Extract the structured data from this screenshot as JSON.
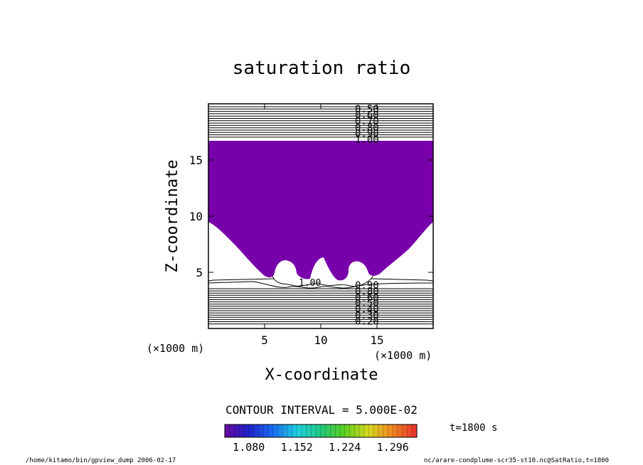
{
  "chart_data": {
    "type": "contour",
    "title": "saturation ratio",
    "xlabel": "X-coordinate",
    "ylabel": "Z-coordinate",
    "x_units": "(×1000 m)",
    "x_units_right": "(×1000 m)",
    "xlim": [
      0,
      20
    ],
    "ylim": [
      0,
      20
    ],
    "x_ticks": [
      5,
      10,
      15
    ],
    "y_ticks": [
      5,
      10,
      15
    ],
    "contour_labels_upper": [
      "0.50",
      "0.60",
      "0.70",
      "0.80",
      "0.90",
      "1.00"
    ],
    "contour_labels_lower": [
      "0.90",
      "0.80",
      "0.60",
      "0.50",
      "0.40",
      "0.30",
      "0.20"
    ],
    "contour_label_mid": "1.00",
    "contour_interval_text": "CONTOUR INTERVAL = 5.000E-02",
    "supersaturated_fill_color": "#7700aa",
    "colorbar": {
      "min": 1.044,
      "max": 1.332,
      "tick_labels": [
        "1.080",
        "1.152",
        "1.224",
        "1.296"
      ],
      "tick_values": [
        1.08,
        1.152,
        1.224,
        1.296
      ],
      "colormap": "rainbow (purple → blue → cyan → green → yellow → red)"
    },
    "time_label": "t=1800 s",
    "grid": false,
    "legend": "none"
  },
  "footer": {
    "left": "/home/kitamo/bin/gpview_dump  2006-02-17",
    "right": "nc/arare-condplume-scr35-st10.nc@SatRatio,t=1800"
  }
}
